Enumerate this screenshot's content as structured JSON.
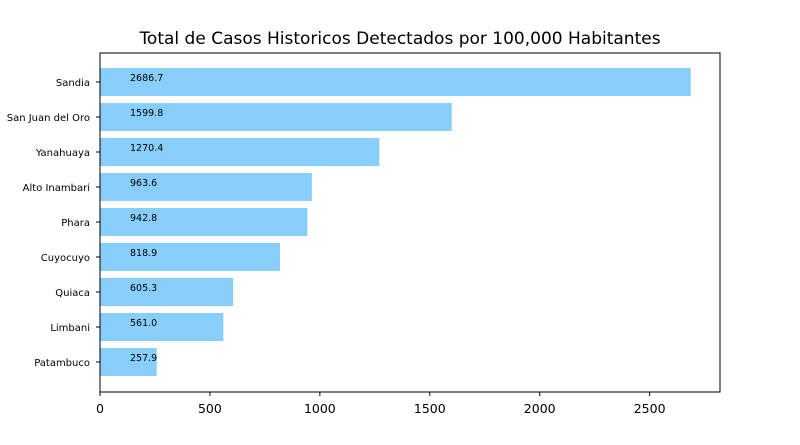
{
  "chart_data": {
    "type": "bar",
    "orientation": "horizontal",
    "title": "Total de Casos Historicos Detectados por 100,000 Habitantes",
    "xlabel": "",
    "ylabel": "",
    "categories": [
      "Sandia",
      "San Juan del Oro",
      "Yanahuaya",
      "Alto Inambari",
      "Phara",
      "Cuyocuyo",
      "Quiaca",
      "Limbani",
      "Patambuco"
    ],
    "values": [
      2686.7,
      1599.8,
      1270.4,
      963.6,
      942.8,
      818.9,
      605.3,
      561.0,
      257.9
    ],
    "data_labels": [
      "2686.7",
      "1599.8",
      "1270.4",
      "963.6",
      "942.8",
      "818.9",
      "605.3",
      "561.0",
      "257.9"
    ],
    "xlim": [
      0,
      2820
    ],
    "xticks": [
      0,
      500,
      1000,
      1500,
      2000,
      2500
    ],
    "bar_color": "#87CEFA",
    "grid": false
  }
}
